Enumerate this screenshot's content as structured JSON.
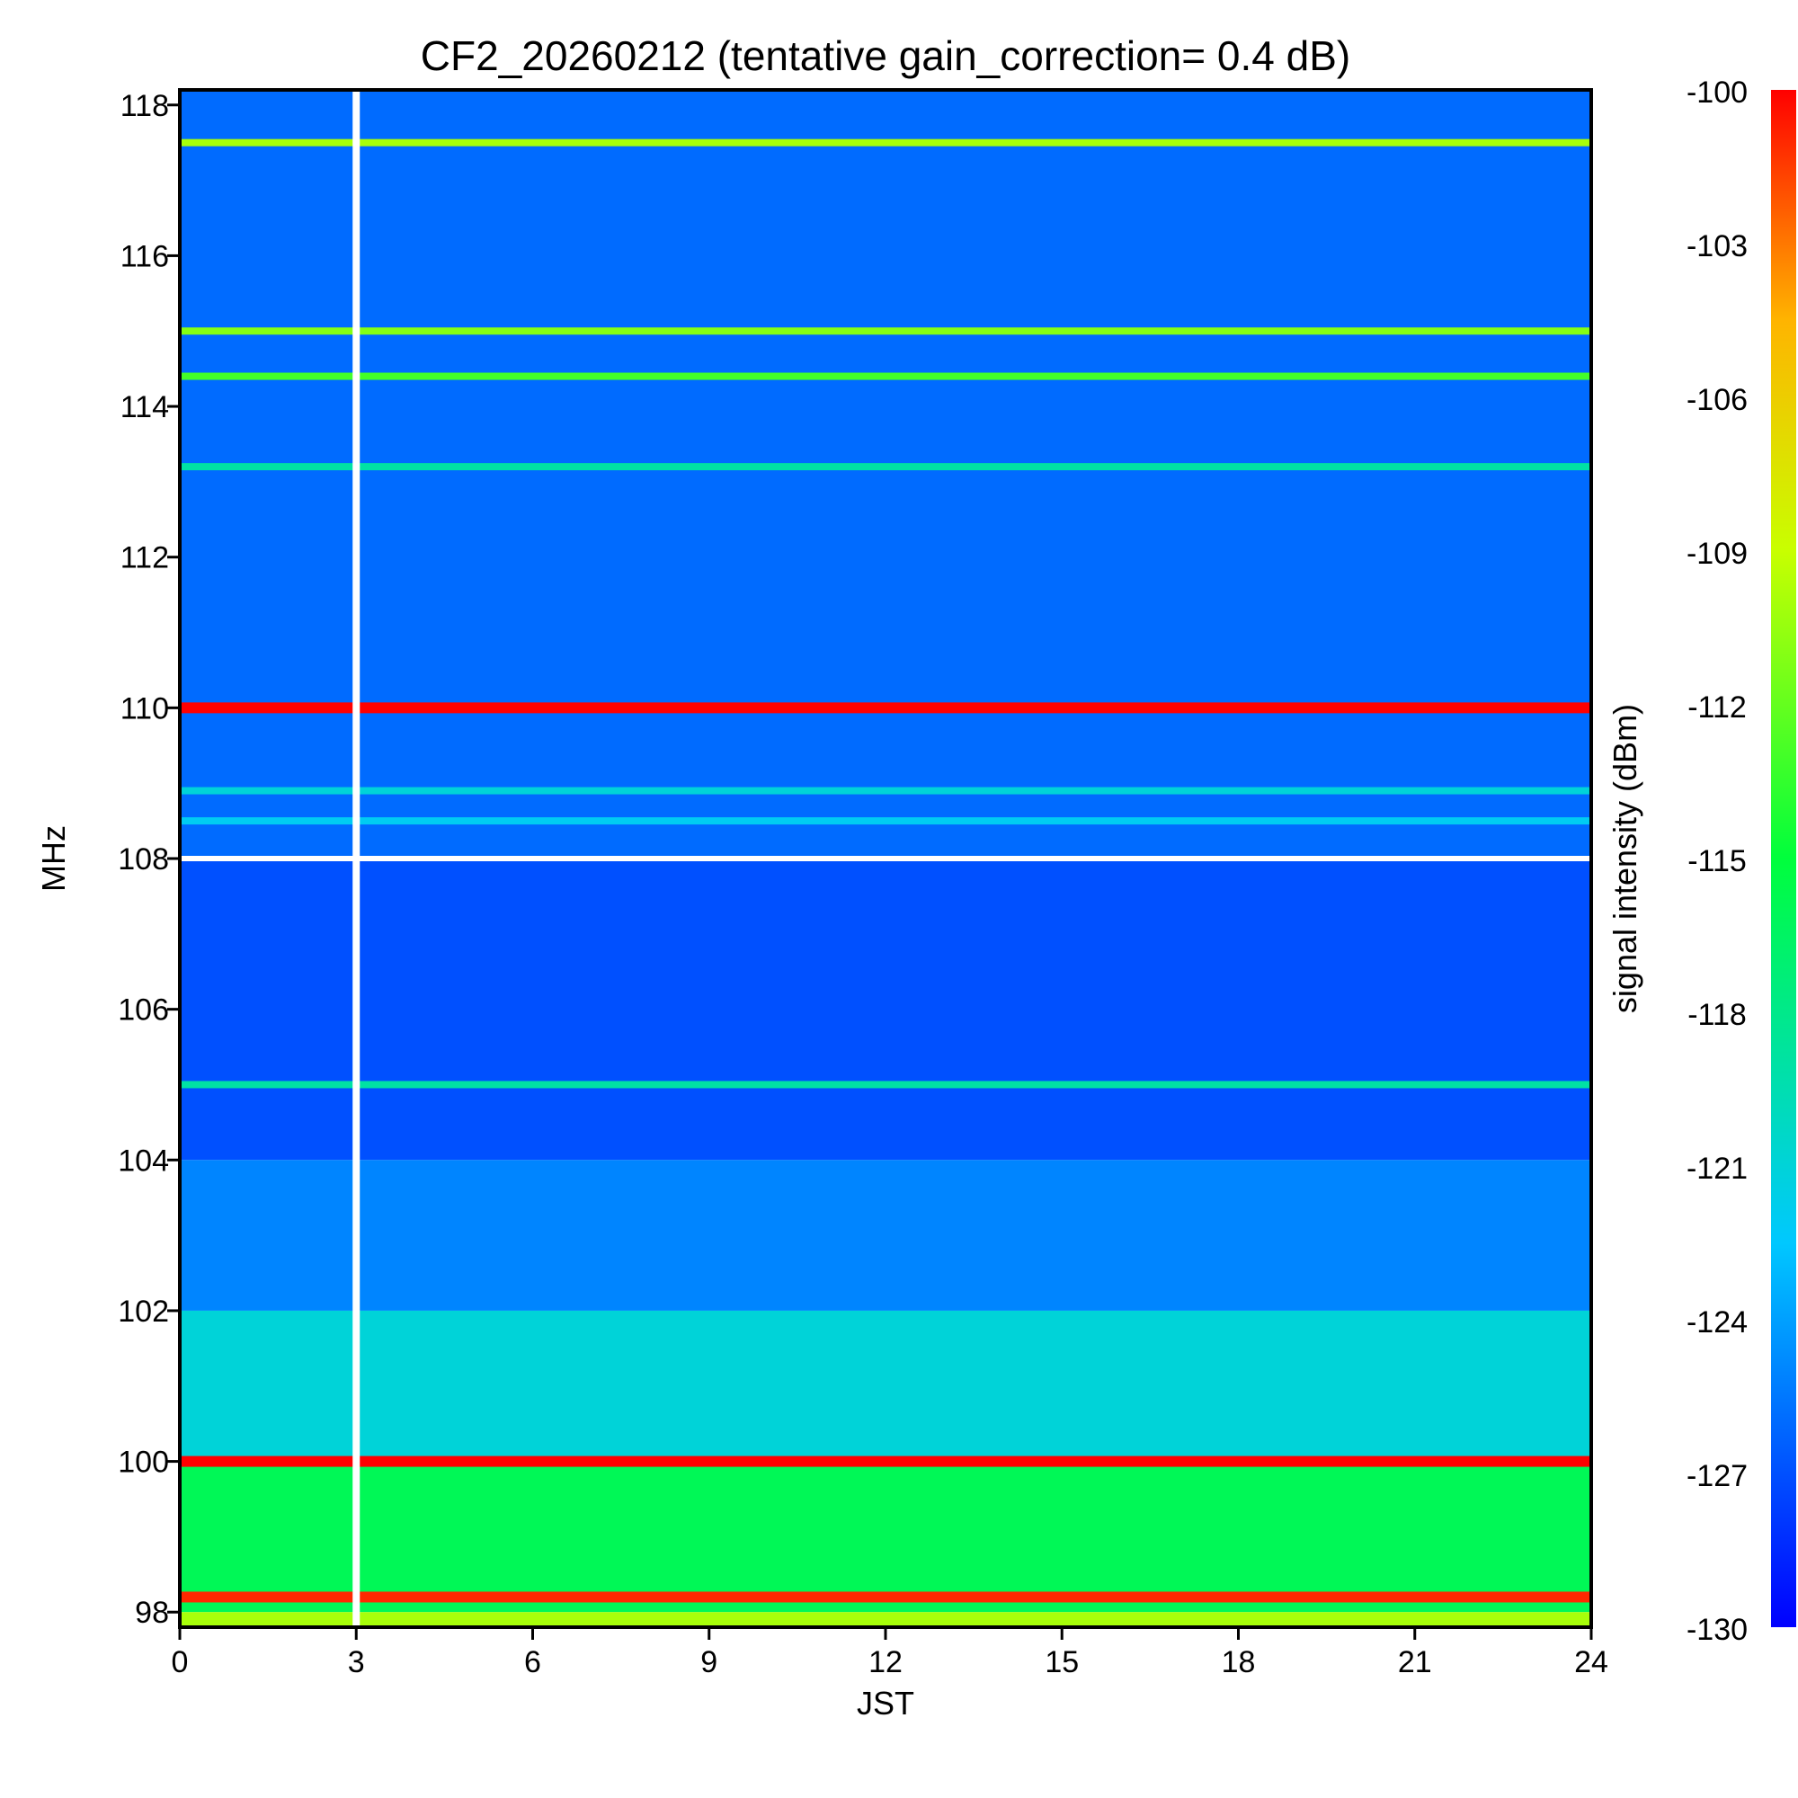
{
  "chart_data": {
    "type": "heatmap",
    "title": "CF2_20260212 (tentative gain_correction=  0.4 dB)",
    "xlabel": "JST",
    "ylabel": "MHz",
    "xlim": [
      0,
      24
    ],
    "ylim": [
      97.8,
      118.2
    ],
    "xticks": [
      0,
      3,
      6,
      9,
      12,
      15,
      18,
      21,
      24
    ],
    "yticks": [
      98,
      100,
      102,
      104,
      106,
      108,
      110,
      112,
      114,
      116,
      118
    ],
    "colorbar": {
      "label": "signal intensity (dBm)",
      "min": -130,
      "max": -100,
      "ticks": [
        -100,
        -103,
        -106,
        -109,
        -112,
        -115,
        -118,
        -121,
        -124,
        -127,
        -130
      ],
      "colormap": "rainbow (blue=low, red=high)"
    },
    "background_levels_dBm": [
      {
        "band_MHz": [
          108,
          118.2
        ],
        "level_dBm": -126
      },
      {
        "band_MHz": [
          104,
          108
        ],
        "level_dBm": -127
      },
      {
        "band_MHz": [
          102,
          104
        ],
        "level_dBm": -125
      },
      {
        "band_MHz": [
          100,
          102
        ],
        "level_dBm": -121
      },
      {
        "band_MHz": [
          98,
          100
        ],
        "level_dBm": -116
      },
      {
        "band_MHz": [
          97.8,
          98
        ],
        "level_dBm": -110
      }
    ],
    "series": [
      {
        "name": "110.0 MHz carrier",
        "freq_MHz": 110.0,
        "level_dBm": -100
      },
      {
        "name": "100.0 MHz carrier",
        "freq_MHz": 100.0,
        "level_dBm": -100
      },
      {
        "name": "117.5 MHz carrier",
        "freq_MHz": 117.5,
        "level_dBm": -110
      },
      {
        "name": "115.0 MHz carrier",
        "freq_MHz": 115.0,
        "level_dBm": -111
      },
      {
        "name": "114.4 MHz carrier",
        "freq_MHz": 114.4,
        "level_dBm": -113
      },
      {
        "name": "113.2 MHz carrier",
        "freq_MHz": 113.2,
        "level_dBm": -119
      },
      {
        "name": "108.9 MHz carrier",
        "freq_MHz": 108.9,
        "level_dBm": -121
      },
      {
        "name": "108.5 MHz carrier",
        "freq_MHz": 108.5,
        "level_dBm": -122
      },
      {
        "name": "105.0 MHz carrier",
        "freq_MHz": 105.0,
        "level_dBm": -119
      },
      {
        "name": "98.2 MHz carrier",
        "freq_MHz": 98.2,
        "level_dBm": -101
      }
    ],
    "gaps": [
      {
        "name": "data gap",
        "time_JST": 3.0
      },
      {
        "name": "band edge",
        "freq_MHz": 108.0
      }
    ]
  }
}
